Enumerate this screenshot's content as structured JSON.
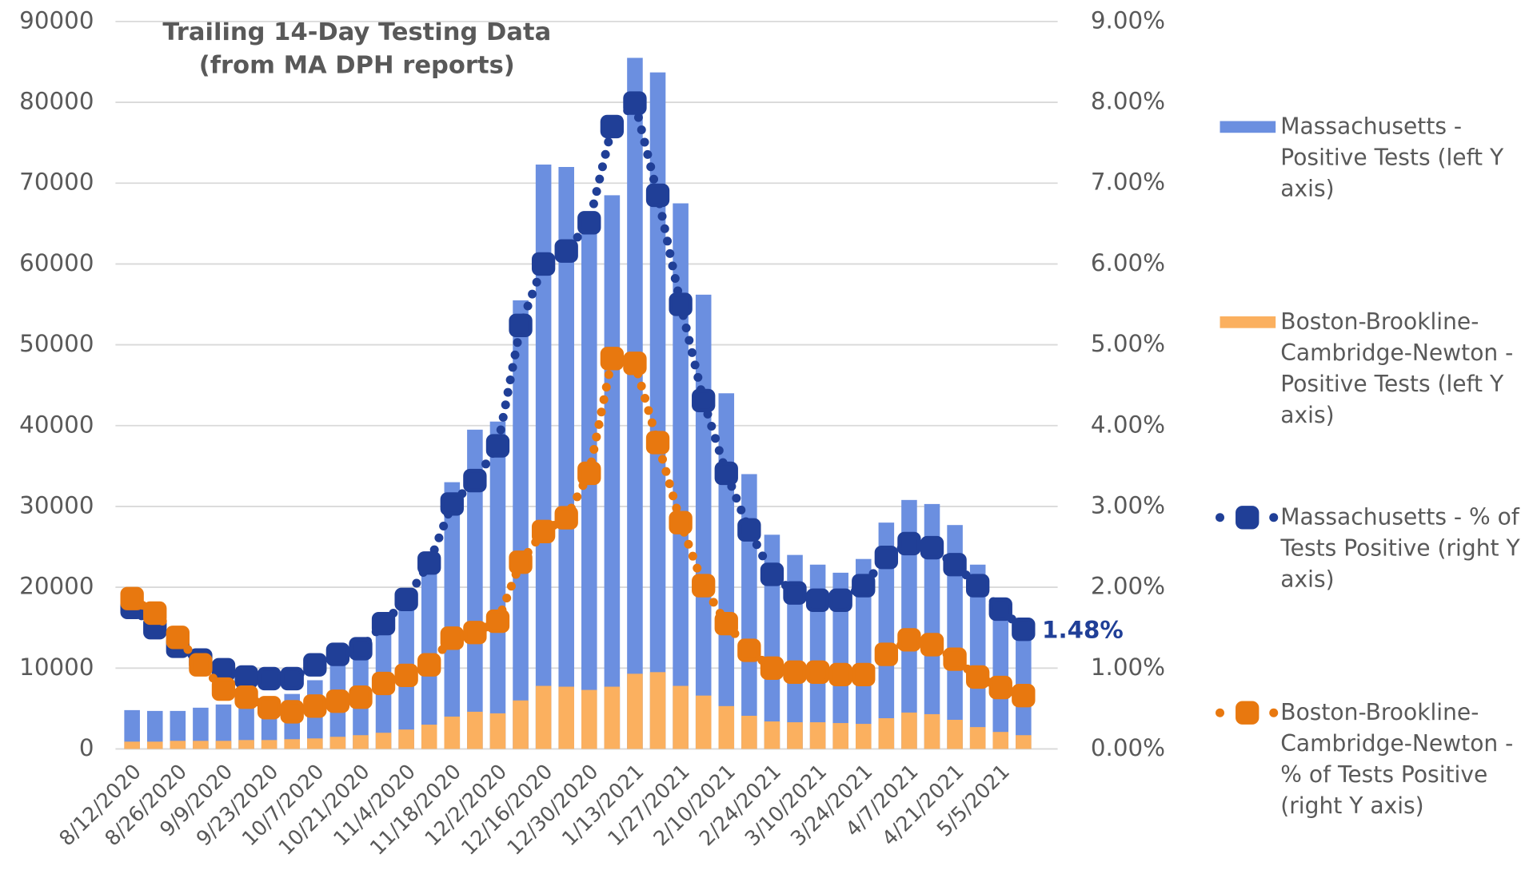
{
  "chart_data": {
    "type": "combo",
    "title": "Trailing 14-Day Testing Data (from MA DPH reports)",
    "categories": [
      "8/12/2020",
      null,
      "8/26/2020",
      null,
      "9/9/2020",
      null,
      "9/23/2020",
      null,
      "10/7/2020",
      null,
      "10/21/2020",
      null,
      "11/4/2020",
      null,
      "11/18/2020",
      null,
      "12/2/2020",
      null,
      "12/16/2020",
      null,
      "12/30/2020",
      null,
      "1/13/2021",
      null,
      "1/27/2021",
      null,
      "2/10/2021",
      null,
      "2/24/2021",
      null,
      "3/10/2021",
      null,
      "3/24/2021",
      null,
      "4/7/2021",
      null,
      "4/21/2021",
      null,
      "5/5/2021",
      null
    ],
    "series": [
      {
        "name": "Massachusetts - Positive Tests (left Y axis)",
        "type": "bar",
        "axis": "y",
        "color": "#6b8fe0",
        "values": [
          4800,
          4700,
          4700,
          5100,
          5500,
          5800,
          6200,
          6800,
          8500,
          10500,
          12000,
          15000,
          19800,
          24000,
          33000,
          39500,
          40500,
          55500,
          72300,
          72000,
          64500,
          68500,
          85500,
          83700,
          67500,
          56200,
          44000,
          34000,
          26500,
          24000,
          22800,
          21800,
          23500,
          28000,
          30800,
          30300,
          27700,
          22800,
          17000,
          13500
        ]
      },
      {
        "name": "Boston-Brookline-Cambridge-Newton - Positive Tests (left Y axis)",
        "type": "bar",
        "axis": "y",
        "color": "#fbb05f",
        "values": [
          900,
          900,
          1000,
          1000,
          1000,
          1100,
          1100,
          1200,
          1300,
          1500,
          1700,
          2000,
          2400,
          3000,
          4000,
          4600,
          4400,
          6000,
          7800,
          7700,
          7300,
          7700,
          9300,
          9500,
          7800,
          6600,
          5300,
          4100,
          3400,
          3300,
          3300,
          3200,
          3100,
          3800,
          4500,
          4300,
          3600,
          2700,
          2100,
          1700
        ]
      },
      {
        "name": "Massachusetts - % of Tests Positive (right Y axis)",
        "type": "line",
        "axis": "y2",
        "color": "#203f97",
        "values": [
          1.75,
          1.5,
          1.27,
          1.1,
          0.98,
          0.89,
          0.87,
          0.87,
          1.04,
          1.17,
          1.24,
          1.55,
          1.85,
          2.3,
          3.03,
          3.32,
          3.75,
          5.24,
          6.0,
          6.16,
          6.51,
          7.7,
          7.99,
          6.85,
          5.5,
          4.31,
          3.41,
          2.71,
          2.16,
          1.93,
          1.84,
          1.84,
          2.02,
          2.37,
          2.54,
          2.49,
          2.28,
          2.02,
          1.73,
          1.48
        ],
        "value_labels": [
          null,
          null,
          null,
          null,
          null,
          null,
          null,
          null,
          null,
          null,
          null,
          null,
          null,
          null,
          null,
          null,
          null,
          null,
          null,
          null,
          null,
          null,
          null,
          null,
          null,
          null,
          null,
          null,
          null,
          null,
          null,
          null,
          null,
          null,
          null,
          null,
          null,
          null,
          null,
          "1.48%"
        ]
      },
      {
        "name": "Boston-Brookline-Cambridge-Newton - % of Tests Positive (right Y axis)",
        "type": "line",
        "axis": "y2",
        "color": "#e8780f",
        "values": [
          1.86,
          1.68,
          1.38,
          1.04,
          0.74,
          0.64,
          0.51,
          0.46,
          0.53,
          0.59,
          0.64,
          0.81,
          0.91,
          1.04,
          1.37,
          1.44,
          1.58,
          2.31,
          2.69,
          2.86,
          3.41,
          4.83,
          4.77,
          3.79,
          2.8,
          2.02,
          1.55,
          1.22,
          1.0,
          0.95,
          0.95,
          0.92,
          0.92,
          1.17,
          1.35,
          1.29,
          1.11,
          0.89,
          0.76,
          0.66
        ]
      }
    ],
    "ylim": [
      0,
      90000
    ],
    "yticks": [
      0,
      10000,
      20000,
      30000,
      40000,
      50000,
      60000,
      70000,
      80000,
      90000
    ],
    "y2lim": [
      0,
      9
    ],
    "y2ticks": [
      {
        "value": 0,
        "label": "0.00%"
      },
      {
        "value": 1,
        "label": "1.00%"
      },
      {
        "value": 2,
        "label": "2.00%"
      },
      {
        "value": 3,
        "label": "3.00%"
      },
      {
        "value": 4,
        "label": "4.00%"
      },
      {
        "value": 5,
        "label": "5.00%"
      },
      {
        "value": 6,
        "label": "6.00%"
      },
      {
        "value": 7,
        "label": "7.00%"
      },
      {
        "value": 8,
        "label": "8.00%"
      },
      {
        "value": 9,
        "label": "9.00%"
      }
    ],
    "grid": true,
    "legend": "right"
  }
}
